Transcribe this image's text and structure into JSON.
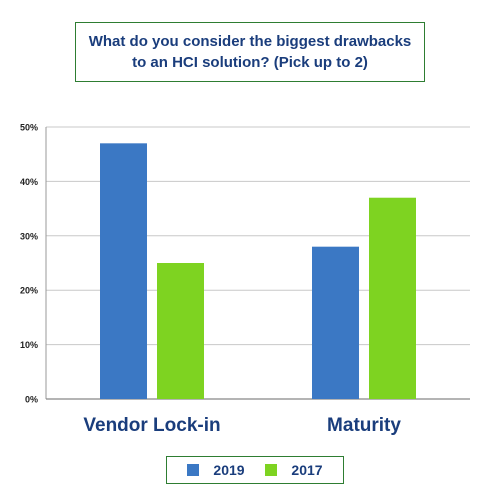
{
  "title": {
    "line1": "What do you consider the biggest drawbacks",
    "line2": "to an HCI solution? (Pick up to 2)"
  },
  "chart_data": {
    "type": "bar",
    "title": "What do you consider the biggest drawbacks to an HCI solution? (Pick up to 2)",
    "categories": [
      "Vendor Lock-in",
      "Maturity"
    ],
    "series": [
      {
        "name": "2019",
        "values": [
          47,
          28
        ],
        "color": "#3b78c4"
      },
      {
        "name": "2017",
        "values": [
          25,
          37
        ],
        "color": "#7ed321"
      }
    ],
    "ylim": [
      0,
      50
    ],
    "yticks": [
      "0%",
      "10%",
      "20%",
      "30%",
      "40%",
      "50%"
    ],
    "ytick_values": [
      0,
      10,
      20,
      30,
      40,
      50
    ],
    "grid": true,
    "legend_placement": "bottom-center"
  },
  "legend": [
    {
      "label": "2019",
      "color": "#3b78c4"
    },
    {
      "label": "2017",
      "color": "#7ed321"
    }
  ]
}
